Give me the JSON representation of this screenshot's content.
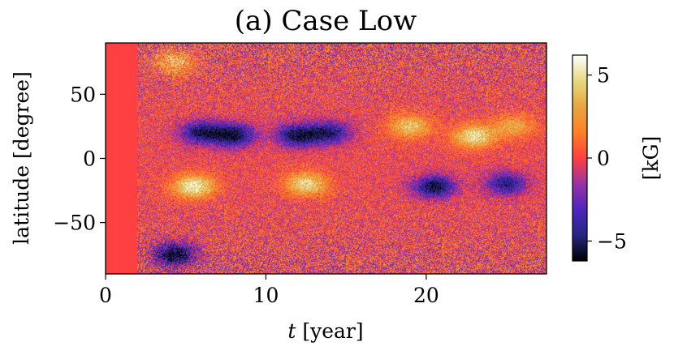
{
  "chart_data": {
    "type": "heatmap",
    "title": "(a) Case Low",
    "xlabel_italic": "t",
    "xlabel_rest": " [year]",
    "ylabel": "latitude [degree]",
    "colorbar_label": "[kG]",
    "colormap": "CMRmap",
    "xlim": [
      0,
      27.5
    ],
    "ylim": [
      -90,
      90
    ],
    "clim": [
      -6.2,
      6.2
    ],
    "x_ticks": [
      {
        "value": 0,
        "label": "0"
      },
      {
        "value": 10,
        "label": "10"
      },
      {
        "value": 20,
        "label": "20"
      }
    ],
    "y_ticks": [
      {
        "value": 50,
        "label": "50"
      },
      {
        "value": 0,
        "label": "0"
      },
      {
        "value": -50,
        "label": "−50"
      }
    ],
    "colorbar_ticks": [
      {
        "value": 5,
        "label": "5"
      },
      {
        "value": 0,
        "label": "0"
      },
      {
        "value": -5,
        "label": "−5"
      }
    ],
    "uniform_region": {
      "t_start": 0,
      "t_end": 2.0,
      "value": 0
    },
    "features": [
      {
        "t": 6.0,
        "lat": 20,
        "value": -5.0
      },
      {
        "t": 8.0,
        "lat": 18,
        "value": -5.5
      },
      {
        "t": 12.0,
        "lat": 18,
        "value": -5.5
      },
      {
        "t": 14.0,
        "lat": 20,
        "value": -4.5
      },
      {
        "t": 5.5,
        "lat": -22,
        "value": 5.5
      },
      {
        "t": 12.5,
        "lat": -20,
        "value": 4.8
      },
      {
        "t": 19.0,
        "lat": 25,
        "value": 4.0
      },
      {
        "t": 23.0,
        "lat": 17,
        "value": 5.0
      },
      {
        "t": 25.5,
        "lat": 25,
        "value": 3.0
      },
      {
        "t": 20.5,
        "lat": -22,
        "value": -5.5
      },
      {
        "t": 25.0,
        "lat": -20,
        "value": -4.5
      },
      {
        "t": 4.3,
        "lat": -75,
        "value": -6.0
      },
      {
        "t": 4.3,
        "lat": 75,
        "value": 3.5
      }
    ]
  }
}
